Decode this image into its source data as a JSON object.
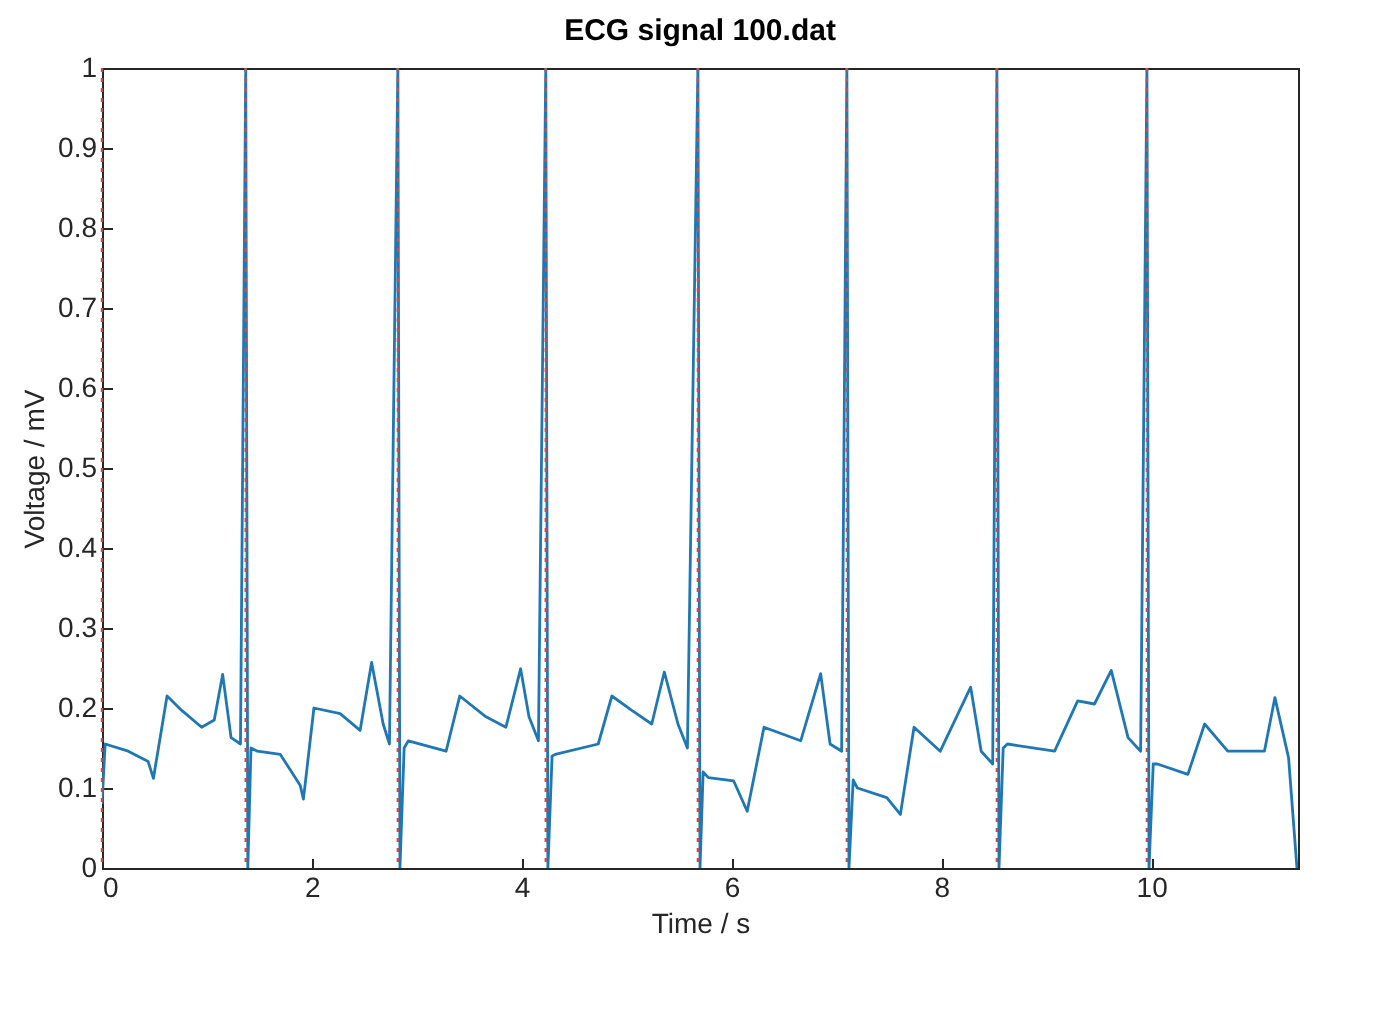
{
  "chart_data": {
    "type": "line",
    "title": "ECG signal 100.dat",
    "xlabel": "Time / s",
    "ylabel": "Voltage / mV",
    "xlim": [
      0,
      11.4
    ],
    "ylim": [
      0,
      1
    ],
    "xticks": [
      0,
      2,
      4,
      6,
      8,
      10
    ],
    "yticks": [
      0,
      0.1,
      0.2,
      0.3,
      0.4,
      0.5,
      0.6,
      0.7,
      0.8,
      0.9,
      1
    ],
    "grid": false,
    "line_style": "solid",
    "series": [
      {
        "color": "#1f77b4",
        "x": [
          0,
          0.03,
          0.25,
          0.44,
          0.49,
          0.62,
          0.76,
          0.95,
          1.07,
          1.15,
          1.23,
          1.32,
          1.37,
          1.39,
          1.42,
          1.48,
          1.7,
          1.89,
          1.92,
          2.02,
          2.27,
          2.46,
          2.57,
          2.68,
          2.74,
          2.82,
          2.84,
          2.88,
          2.92,
          3.28,
          3.41,
          3.66,
          3.85,
          3.99,
          4.07,
          4.16,
          4.23,
          4.25,
          4.29,
          4.32,
          4.73,
          4.86,
          5.05,
          5.24,
          5.36,
          5.49,
          5.58,
          5.68,
          5.7,
          5.73,
          5.78,
          6.02,
          6.15,
          6.31,
          6.66,
          6.85,
          6.94,
          7.05,
          7.1,
          7.12,
          7.16,
          7.2,
          7.48,
          7.61,
          7.74,
          7.99,
          8.28,
          8.38,
          8.49,
          8.53,
          8.55,
          8.59,
          8.63,
          9.08,
          9.3,
          9.46,
          9.62,
          9.78,
          9.9,
          9.96,
          9.98,
          10.02,
          10.06,
          10.35,
          10.51,
          10.73,
          11.08,
          11.18,
          11.31,
          11.39
        ],
        "values": [
          0.08,
          0.155,
          0.146,
          0.133,
          0.112,
          0.215,
          0.197,
          0.176,
          0.185,
          0.242,
          0.163,
          0.155,
          1,
          0,
          0.15,
          0.146,
          0.142,
          0.103,
          0.086,
          0.2,
          0.193,
          0.172,
          0.257,
          0.18,
          0.155,
          1,
          0,
          0.15,
          0.159,
          0.146,
          0.215,
          0.189,
          0.176,
          0.249,
          0.189,
          0.159,
          1,
          0,
          0.14,
          0.142,
          0.155,
          0.215,
          0.197,
          0.18,
          0.245,
          0.18,
          0.15,
          1,
          0,
          0.12,
          0.113,
          0.109,
          0.071,
          0.176,
          0.159,
          0.243,
          0.155,
          0.146,
          1,
          0,
          0.11,
          0.1,
          0.088,
          0.067,
          0.176,
          0.146,
          0.226,
          0.146,
          0.13,
          1,
          0,
          0.15,
          0.155,
          0.146,
          0.209,
          0.205,
          0.247,
          0.163,
          0.146,
          1,
          0,
          0.13,
          0.13,
          0.117,
          0.18,
          0.146,
          0.146,
          0.213,
          0.138,
          0
        ]
      }
    ],
    "ref_lines": [
      {
        "axis": "x",
        "value": 0,
        "color": "#c0504d",
        "line_style": "dotted"
      },
      {
        "axis": "x",
        "value": 1.37,
        "color": "#c0504d",
        "line_style": "dotted"
      },
      {
        "axis": "x",
        "value": 2.82,
        "color": "#c0504d",
        "line_style": "dotted"
      },
      {
        "axis": "x",
        "value": 4.23,
        "color": "#c0504d",
        "line_style": "dotted"
      },
      {
        "axis": "x",
        "value": 5.68,
        "color": "#c0504d",
        "line_style": "dotted"
      },
      {
        "axis": "x",
        "value": 7.1,
        "color": "#c0504d",
        "line_style": "dotted"
      },
      {
        "axis": "x",
        "value": 8.53,
        "color": "#c0504d",
        "line_style": "dotted"
      },
      {
        "axis": "x",
        "value": 9.96,
        "color": "#c0504d",
        "line_style": "dotted"
      }
    ]
  }
}
